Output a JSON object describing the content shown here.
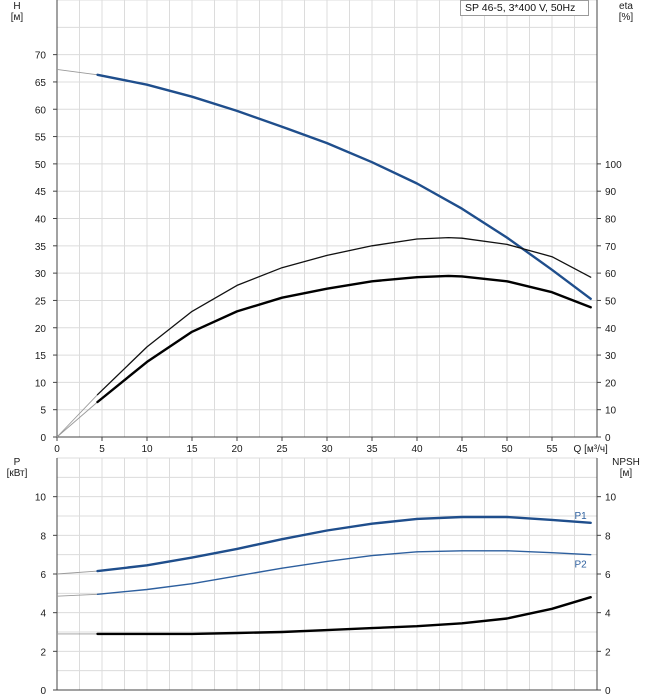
{
  "chart_data": [
    {
      "type": "line",
      "title": "SP 46-5, 3*400 V, 50Hz",
      "xlabel": "Q [м³/ч]",
      "x_ticks": [
        0,
        5,
        10,
        15,
        20,
        25,
        30,
        35,
        40,
        45,
        50,
        55
      ],
      "xlim": [
        0,
        60
      ],
      "left_axis": {
        "label_top": "H",
        "label_unit": "[м]",
        "ylim": [
          0,
          80
        ],
        "ticks": [
          0,
          5,
          10,
          15,
          20,
          25,
          30,
          35,
          40,
          45,
          50,
          55,
          60,
          65,
          70
        ]
      },
      "right_axis": {
        "label_top": "eta",
        "label_unit": "[%]",
        "ylim": [
          0,
          160
        ],
        "ticks": [
          0,
          10,
          20,
          30,
          40,
          50,
          60,
          70,
          80,
          90,
          100
        ]
      },
      "series": [
        {
          "axis": "left",
          "color": "#1f4e8c",
          "width": 2.4,
          "extrapolated": {
            "x": [
              0,
              4.5
            ],
            "y": [
              67.3,
              66.3
            ]
          },
          "x": [
            4.5,
            10,
            15,
            20,
            25,
            30,
            35,
            40,
            45,
            50,
            55,
            59.3
          ],
          "y": [
            66.3,
            64.5,
            62.3,
            59.7,
            56.8,
            53.8,
            50.3,
            46.4,
            41.8,
            36.5,
            30.6,
            25.3
          ]
        },
        {
          "axis": "right",
          "color": "#111111",
          "width": 1.3,
          "extrapolated": {
            "x": [
              0,
              4.5
            ],
            "y": [
              0,
              15.5
            ]
          },
          "x": [
            4.5,
            10,
            15,
            20,
            25,
            30,
            35,
            40,
            43.5,
            45,
            50,
            55,
            59.3
          ],
          "y": [
            15.5,
            33,
            46,
            55.5,
            62,
            66.5,
            70,
            72.5,
            73,
            72.8,
            70.5,
            66,
            58.5
          ]
        },
        {
          "axis": "right",
          "color": "#000000",
          "width": 2.4,
          "extrapolated": {
            "x": [
              0,
              4.5
            ],
            "y": [
              0,
              12.8
            ]
          },
          "x": [
            4.5,
            10,
            15,
            20,
            25,
            30,
            35,
            40,
            43.5,
            45,
            50,
            55,
            59.3
          ],
          "y": [
            12.8,
            27.5,
            38.5,
            46,
            51,
            54.3,
            57,
            58.5,
            59,
            58.8,
            57,
            53,
            47.5
          ]
        }
      ]
    },
    {
      "type": "line",
      "xlim": [
        0,
        60
      ],
      "left_axis": {
        "label_top": "P",
        "label_unit": "[кВт]",
        "ylim": [
          0,
          12
        ],
        "ticks": [
          0,
          2,
          4,
          6,
          8,
          10
        ]
      },
      "right_axis": {
        "label_top": "NPSH",
        "label_unit": "[м]",
        "ylim": [
          0,
          12
        ],
        "ticks": [
          0,
          2,
          4,
          6,
          8,
          10
        ]
      },
      "series": [
        {
          "name": "P1",
          "axis": "left",
          "color": "#1f4e8c",
          "width": 2.4,
          "extrapolated": {
            "x": [
              0,
              4.5
            ],
            "y": [
              6.0,
              6.15
            ]
          },
          "x": [
            4.5,
            10,
            15,
            20,
            25,
            30,
            35,
            40,
            45,
            50,
            55,
            59.3
          ],
          "y": [
            6.15,
            6.45,
            6.85,
            7.3,
            7.8,
            8.25,
            8.6,
            8.85,
            8.95,
            8.95,
            8.8,
            8.65
          ]
        },
        {
          "name": "P2",
          "axis": "left",
          "color": "#2d5f9e",
          "width": 1.4,
          "extrapolated": {
            "x": [
              0,
              4.5
            ],
            "y": [
              4.85,
              4.95
            ]
          },
          "x": [
            4.5,
            10,
            15,
            20,
            25,
            30,
            35,
            40,
            45,
            50,
            55,
            59.3
          ],
          "y": [
            4.95,
            5.2,
            5.5,
            5.9,
            6.3,
            6.65,
            6.95,
            7.15,
            7.2,
            7.2,
            7.1,
            7.0
          ]
        },
        {
          "axis": "right",
          "color": "#000000",
          "width": 2.4,
          "extrapolated": {
            "x": [
              0,
              4.5
            ],
            "y": [
              2.9,
              2.9
            ]
          },
          "x": [
            4.5,
            10,
            15,
            20,
            25,
            30,
            35,
            40,
            45,
            50,
            55,
            59.3
          ],
          "y": [
            2.9,
            2.9,
            2.9,
            2.95,
            3.0,
            3.1,
            3.2,
            3.3,
            3.45,
            3.7,
            4.2,
            4.8
          ]
        }
      ]
    }
  ]
}
